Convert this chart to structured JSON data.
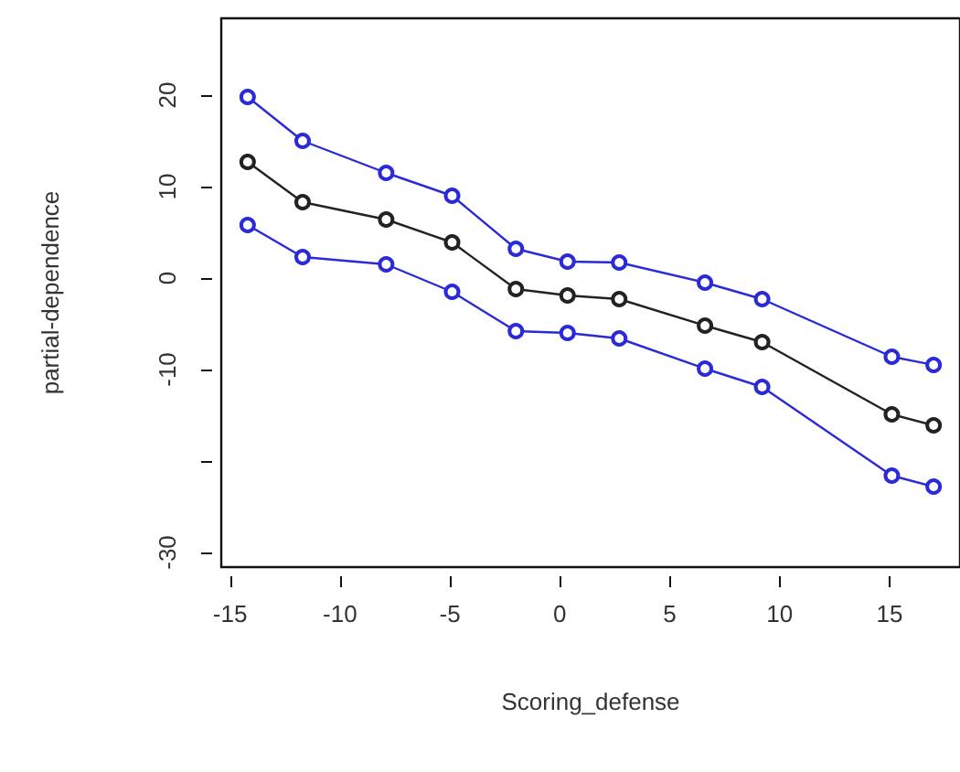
{
  "chart_data": {
    "type": "line",
    "xlabel": "Scoring_defense",
    "ylabel": "partial-dependence",
    "x": [
      -14.2,
      -11.7,
      -7.9,
      -4.9,
      -2.0,
      0.35,
      2.7,
      6.6,
      9.2,
      15.1,
      17.0
    ],
    "series": [
      {
        "color": "#2a2ad8",
        "values": [
          19.8,
          15.0,
          11.5,
          9.0,
          3.2,
          1.8,
          1.7,
          -0.5,
          -2.3,
          -8.6,
          -9.5
        ]
      },
      {
        "color": "#222222",
        "values": [
          12.7,
          8.3,
          6.4,
          3.9,
          -1.2,
          -1.9,
          -2.3,
          -5.2,
          -7.0,
          -14.9,
          -16.1
        ]
      },
      {
        "color": "#2a2ad8",
        "values": [
          5.8,
          2.3,
          1.5,
          -1.5,
          -5.8,
          -6.0,
          -6.6,
          -9.9,
          -11.9,
          -21.6,
          -22.8
        ]
      }
    ],
    "xlim": [
      -15.4,
      18.2
    ],
    "xticks": [
      -15,
      -10,
      -5,
      0,
      5,
      10,
      15
    ],
    "ylim": [
      -31.6,
      28.4
    ],
    "yticks": [
      -30,
      {
        "value": -20,
        "label": null
      },
      -10,
      0,
      10,
      20
    ],
    "marker": "circle",
    "line_style": "solid"
  }
}
